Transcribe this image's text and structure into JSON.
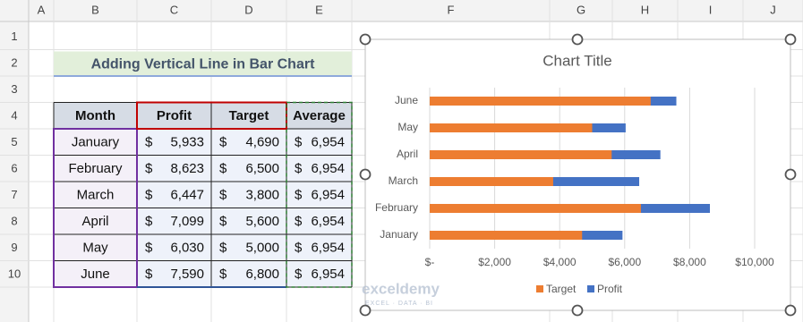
{
  "sheet": {
    "columns": [
      "A",
      "B",
      "C",
      "D",
      "E",
      "F",
      "G",
      "H",
      "I",
      "J"
    ],
    "rows": [
      "1",
      "2",
      "3",
      "4",
      "5",
      "6",
      "7",
      "8",
      "9",
      "10"
    ]
  },
  "title_cell": "Adding Vertical Line in Bar Chart",
  "table": {
    "headers": [
      "Month",
      "Profit",
      "Target",
      "Average"
    ],
    "currency": "$",
    "rows": [
      [
        "January",
        "5,933",
        "4,690",
        "6,954"
      ],
      [
        "February",
        "8,623",
        "6,500",
        "6,954"
      ],
      [
        "March",
        "6,447",
        "3,800",
        "6,954"
      ],
      [
        "April",
        "7,099",
        "5,600",
        "6,954"
      ],
      [
        "May",
        "6,030",
        "5,000",
        "6,954"
      ],
      [
        "June",
        "7,590",
        "6,800",
        "6,954"
      ]
    ]
  },
  "chart_data": {
    "type": "bar",
    "orientation": "horizontal",
    "title": "Chart Title",
    "categories": [
      "January",
      "February",
      "March",
      "April",
      "May",
      "June"
    ],
    "series": [
      {
        "name": "Target",
        "color": "#ed7d31",
        "values": [
          4690,
          6500,
          3800,
          5600,
          5000,
          6800
        ]
      },
      {
        "name": "Profit",
        "color": "#4472c4",
        "values": [
          5933,
          8623,
          6447,
          7099,
          6030,
          7590
        ]
      }
    ],
    "xlim": [
      0,
      10000
    ],
    "xticks": [
      {
        "value": 0,
        "label": "$-"
      },
      {
        "value": 2000,
        "label": "$2,000"
      },
      {
        "value": 4000,
        "label": "$4,000"
      },
      {
        "value": 6000,
        "label": "$6,000"
      },
      {
        "value": 8000,
        "label": "$8,000"
      },
      {
        "value": 10000,
        "label": "$10,000"
      }
    ],
    "grid": true,
    "legend": "bottom"
  },
  "watermark": {
    "name": "exceldemy",
    "tagline": "EXCEL · DATA · BI"
  }
}
